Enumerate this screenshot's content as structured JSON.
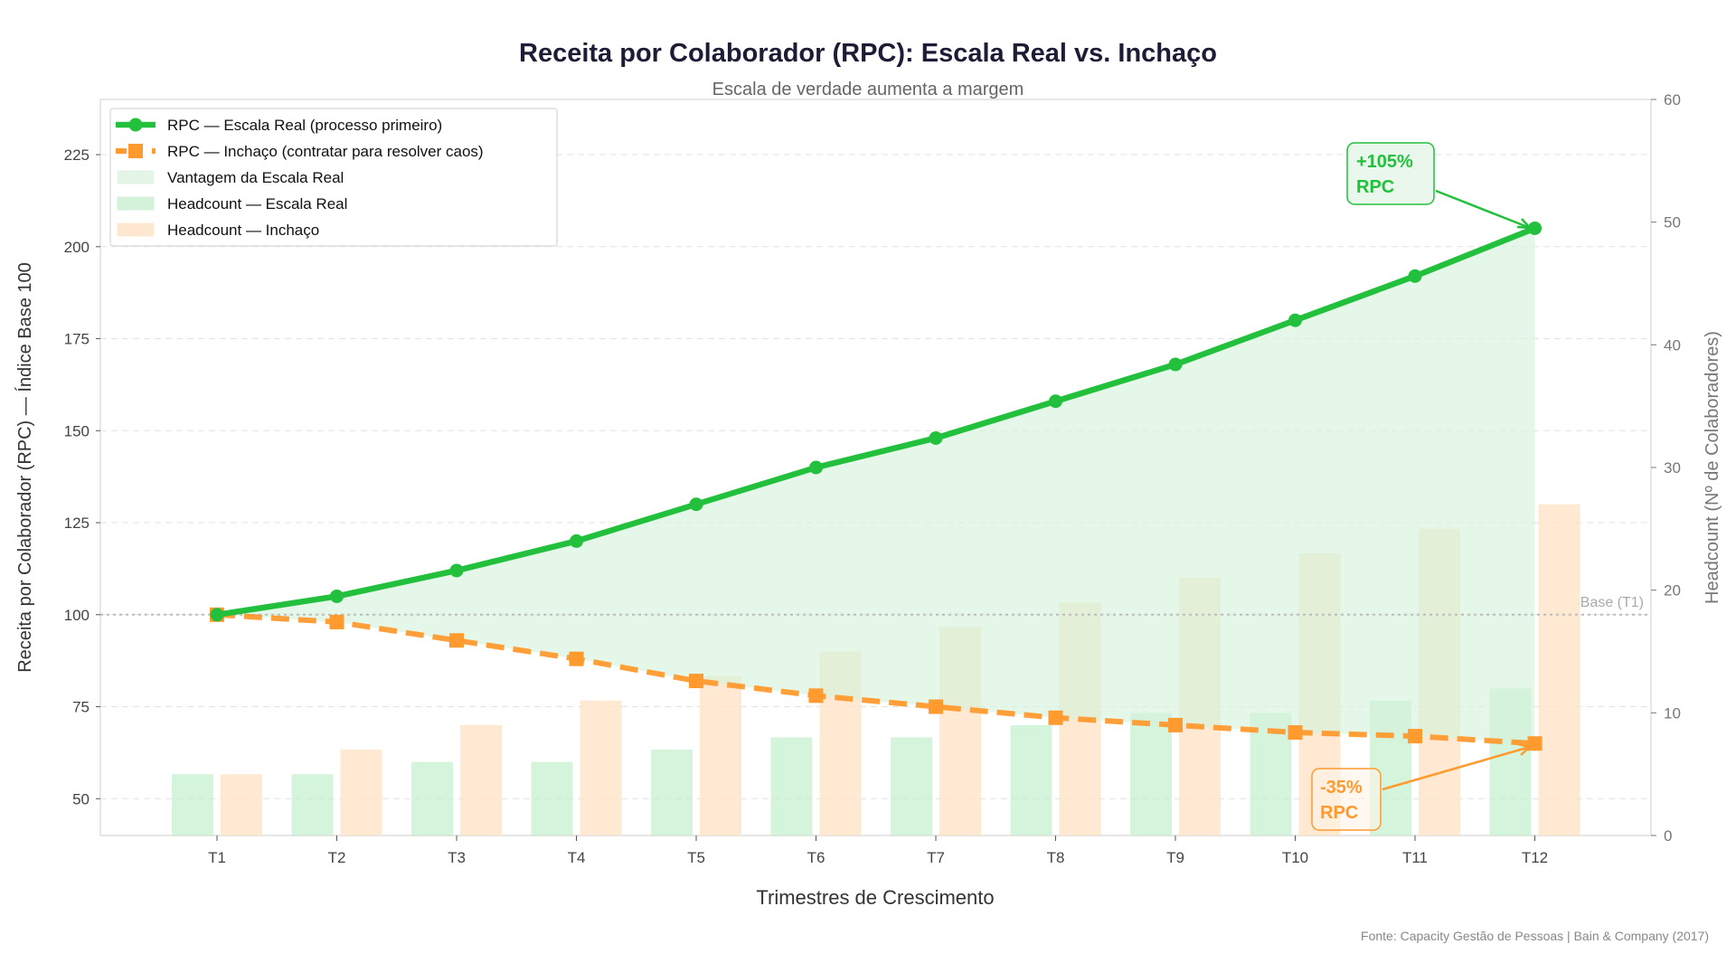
{
  "chart_data": {
    "type": "line",
    "title": "Receita por Colaborador (RPC): Escala Real vs. Inchaço",
    "subtitle": "Escala de verdade aumenta a margem",
    "xlabel": "Trimestres de Crescimento",
    "ylabel": "Receita por Colaborador (RPC) — Índice Base 100",
    "y2label": "Headcount (Nº de Colaboradores)",
    "categories": [
      "T1",
      "T2",
      "T3",
      "T4",
      "T5",
      "T6",
      "T7",
      "T8",
      "T9",
      "T10",
      "T11",
      "T12"
    ],
    "ylim": [
      40,
      240
    ],
    "yticks": [
      50,
      75,
      100,
      125,
      150,
      175,
      200,
      225
    ],
    "y2lim": [
      0,
      60
    ],
    "y2ticks": [
      0,
      10,
      20,
      30,
      40,
      50,
      60
    ],
    "grid": true,
    "legend_position": "top-left",
    "series": [
      {
        "name": "RPC — Escala Real (processo primeiro)",
        "kind": "line",
        "axis": "left",
        "color": "#22c03c",
        "marker": "circle",
        "values": [
          100,
          105,
          112,
          120,
          130,
          140,
          148,
          158,
          168,
          180,
          192,
          205
        ]
      },
      {
        "name": "RPC — Inchaço (contratar para resolver caos)",
        "kind": "line-dashed",
        "axis": "left",
        "color": "#ff9a2e",
        "marker": "square",
        "values": [
          100,
          98,
          93,
          88,
          82,
          78,
          75,
          72,
          70,
          68,
          67,
          65
        ]
      },
      {
        "name": "Headcount — Escala Real",
        "kind": "bar",
        "axis": "right",
        "color": "#bfeec9",
        "values": [
          5,
          5,
          6,
          6,
          7,
          8,
          8,
          9,
          10,
          10,
          11,
          12
        ]
      },
      {
        "name": "Headcount — Inchaço",
        "kind": "bar",
        "axis": "right",
        "color": "#ffe4c7",
        "values": [
          5,
          7,
          9,
          11,
          13,
          15,
          17,
          19,
          21,
          23,
          25,
          27
        ]
      }
    ],
    "fill": {
      "name": "Vantagem da Escala Real",
      "color": "#d6f3db"
    },
    "reference_line": {
      "value": 100,
      "label": "Base (T1)"
    },
    "annotations": [
      {
        "text_line1": "+105%",
        "text_line2": "RPC",
        "target": "T12",
        "series": 0,
        "color": "#22c03c"
      },
      {
        "text_line1": "-35%",
        "text_line2": "RPC",
        "target": "T12",
        "series": 1,
        "color": "#ff9a2e"
      }
    ],
    "source": "Fonte: Capacity Gestão de Pessoas | Bain & Company (2017)"
  }
}
